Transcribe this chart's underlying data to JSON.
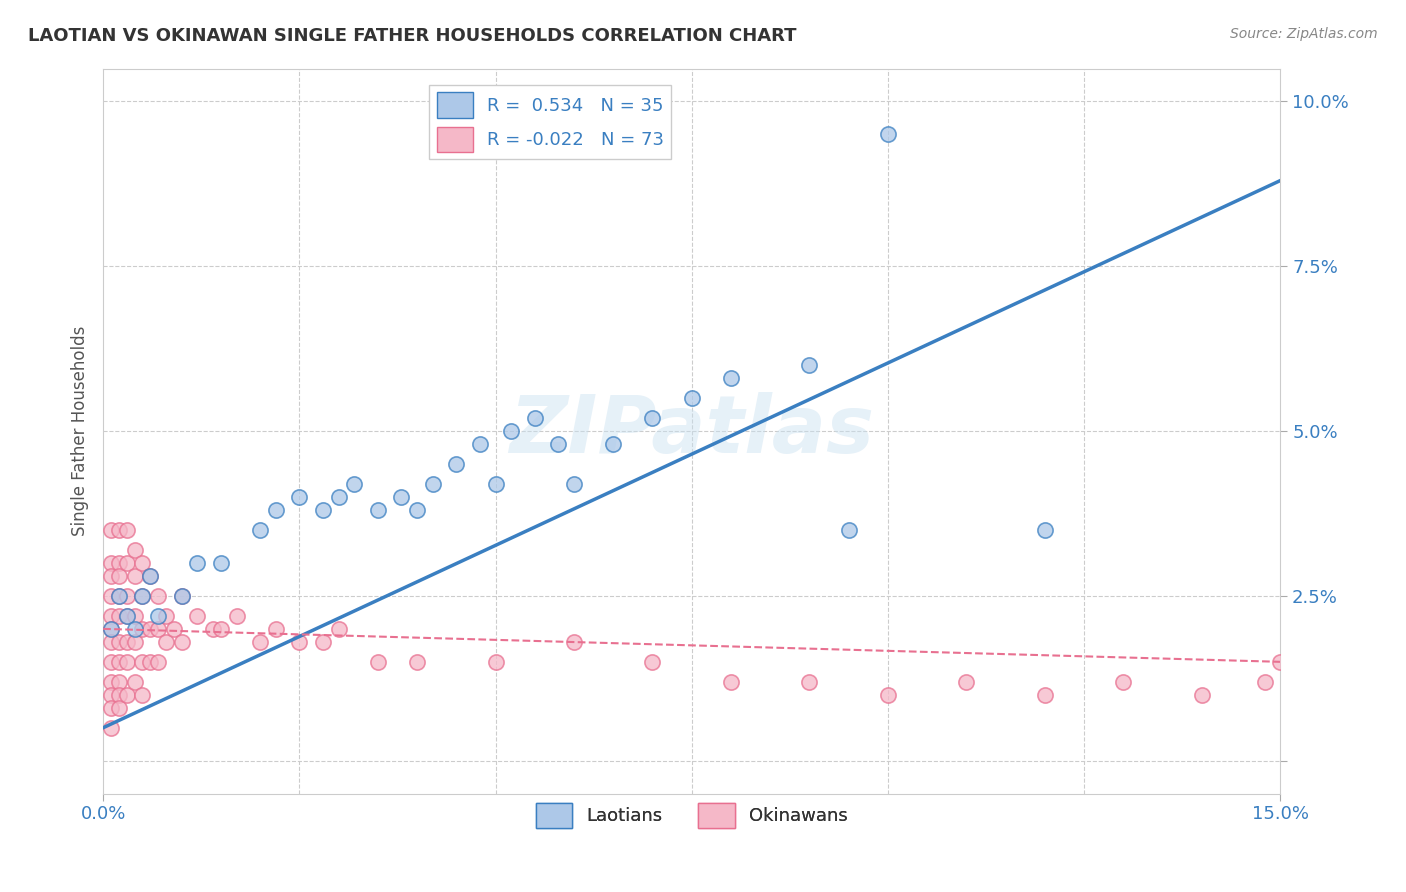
{
  "title": "LAOTIAN VS OKINAWAN SINGLE FATHER HOUSEHOLDS CORRELATION CHART",
  "source_text": "Source: ZipAtlas.com",
  "ylabel": "Single Father Households",
  "xlim": [
    0.0,
    0.15
  ],
  "ylim": [
    -0.005,
    0.105
  ],
  "yticks": [
    0.0,
    0.025,
    0.05,
    0.075,
    0.1
  ],
  "ytick_labels": [
    "",
    "2.5%",
    "5.0%",
    "7.5%",
    "10.0%"
  ],
  "watermark": "ZIPatlas",
  "legend_r_laotian": "0.534",
  "legend_n_laotian": "35",
  "legend_r_okinawan": "-0.022",
  "legend_n_okinawan": "73",
  "laotian_color": "#adc8e8",
  "okinawan_color": "#f5b8c8",
  "laotian_line_color": "#3a7fc1",
  "okinawan_line_color": "#e87090",
  "background_color": "#ffffff",
  "grid_color": "#cccccc",
  "laotian_points_x": [
    0.001,
    0.002,
    0.003,
    0.004,
    0.005,
    0.006,
    0.007,
    0.01,
    0.012,
    0.015,
    0.02,
    0.022,
    0.025,
    0.028,
    0.03,
    0.032,
    0.035,
    0.038,
    0.04,
    0.042,
    0.045,
    0.048,
    0.05,
    0.052,
    0.055,
    0.058,
    0.06,
    0.065,
    0.07,
    0.075,
    0.08,
    0.09,
    0.095,
    0.1,
    0.12
  ],
  "laotian_points_y": [
    0.02,
    0.025,
    0.022,
    0.02,
    0.025,
    0.028,
    0.022,
    0.025,
    0.03,
    0.03,
    0.035,
    0.038,
    0.04,
    0.038,
    0.04,
    0.042,
    0.038,
    0.04,
    0.038,
    0.042,
    0.045,
    0.048,
    0.042,
    0.05,
    0.052,
    0.048,
    0.042,
    0.048,
    0.052,
    0.055,
    0.058,
    0.06,
    0.035,
    0.095,
    0.035
  ],
  "okinawan_points_x": [
    0.001,
    0.001,
    0.001,
    0.001,
    0.001,
    0.001,
    0.001,
    0.001,
    0.001,
    0.001,
    0.001,
    0.001,
    0.002,
    0.002,
    0.002,
    0.002,
    0.002,
    0.002,
    0.002,
    0.002,
    0.002,
    0.002,
    0.003,
    0.003,
    0.003,
    0.003,
    0.003,
    0.003,
    0.003,
    0.004,
    0.004,
    0.004,
    0.004,
    0.004,
    0.005,
    0.005,
    0.005,
    0.005,
    0.005,
    0.006,
    0.006,
    0.006,
    0.007,
    0.007,
    0.007,
    0.008,
    0.008,
    0.009,
    0.01,
    0.01,
    0.012,
    0.014,
    0.015,
    0.017,
    0.02,
    0.022,
    0.025,
    0.028,
    0.03,
    0.035,
    0.04,
    0.05,
    0.06,
    0.07,
    0.08,
    0.09,
    0.1,
    0.11,
    0.12,
    0.13,
    0.14,
    0.148,
    0.15
  ],
  "okinawan_points_y": [
    0.035,
    0.03,
    0.028,
    0.025,
    0.022,
    0.02,
    0.018,
    0.015,
    0.012,
    0.01,
    0.008,
    0.005,
    0.035,
    0.03,
    0.028,
    0.025,
    0.022,
    0.018,
    0.015,
    0.012,
    0.01,
    0.008,
    0.035,
    0.03,
    0.025,
    0.022,
    0.018,
    0.015,
    0.01,
    0.032,
    0.028,
    0.022,
    0.018,
    0.012,
    0.03,
    0.025,
    0.02,
    0.015,
    0.01,
    0.028,
    0.02,
    0.015,
    0.025,
    0.02,
    0.015,
    0.022,
    0.018,
    0.02,
    0.025,
    0.018,
    0.022,
    0.02,
    0.02,
    0.022,
    0.018,
    0.02,
    0.018,
    0.018,
    0.02,
    0.015,
    0.015,
    0.015,
    0.018,
    0.015,
    0.012,
    0.012,
    0.01,
    0.012,
    0.01,
    0.012,
    0.01,
    0.012,
    0.015
  ],
  "lao_line_x": [
    0.0,
    0.15
  ],
  "lao_line_y": [
    0.005,
    0.088
  ],
  "oki_line_x": [
    0.0,
    0.15
  ],
  "oki_line_y": [
    0.02,
    0.015
  ]
}
